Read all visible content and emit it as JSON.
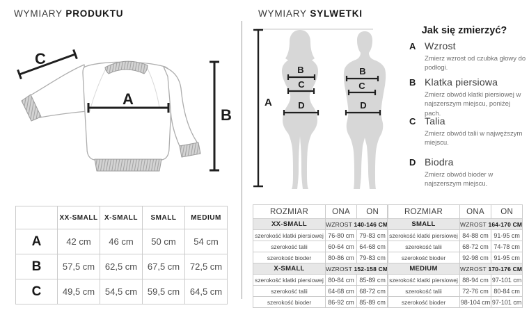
{
  "colors": {
    "text": "#1d1d1d",
    "muted": "#6e6e6e",
    "border": "#cbcbcb",
    "band_bg": "#e7e7e7",
    "silhouette": "#d7d7d7",
    "divider": "#9c9c9c"
  },
  "left": {
    "title_regular": "WYMIARY",
    "title_bold": "PRODUKTU",
    "diagram": {
      "a": "A",
      "b": "B",
      "c": "C"
    },
    "table": {
      "corner": "",
      "col_headers": [
        "XX-SMALL",
        "X-SMALL",
        "SMALL",
        "MEDIUM"
      ],
      "rows": [
        {
          "label": "A",
          "values": [
            "42 cm",
            "46 cm",
            "50 cm",
            "54 cm"
          ]
        },
        {
          "label": "B",
          "values": [
            "57,5 cm",
            "62,5 cm",
            "67,5 cm",
            "72,5 cm"
          ]
        },
        {
          "label": "C",
          "values": [
            "49,5 cm",
            "54,5 cm",
            "59,5 cm",
            "64,5 cm"
          ]
        }
      ]
    }
  },
  "right": {
    "title_regular": "WYMIARY",
    "title_bold": "SYLWETKI",
    "figure": {
      "a": "A",
      "b": "B",
      "c": "C",
      "d": "D"
    },
    "howto": {
      "heading": "Jak się zmierzyć?",
      "items": [
        {
          "letter": "A",
          "title": "Wzrost",
          "desc": "Zmierz wzrost od czubka głowy do podłogi."
        },
        {
          "letter": "B",
          "title": "Klatka piersiowa",
          "desc": "Zmierz obwód klatki piersiowej w najszerszym miejscu, poniżej pach."
        },
        {
          "letter": "C",
          "title": "Talia",
          "desc": "Zmierz obwód talii w najwęższym miejscu."
        },
        {
          "letter": "D",
          "title": "Biodra",
          "desc": "Zmierz obwód bioder w najszerszym miejscu."
        }
      ]
    },
    "tables": [
      {
        "headers": [
          "ROZMIAR",
          "ONA",
          "ON"
        ],
        "sections": [
          {
            "size": "XX-SMALL",
            "wzrost_label": "WZROST",
            "wzrost_value": "140-146 CM",
            "rows": [
              {
                "label": "szerokość klatki piersiowej",
                "ona": "76-80 cm",
                "on": "79-83 cm"
              },
              {
                "label": "szerokość talii",
                "ona": "60-64 cm",
                "on": "64-68 cm"
              },
              {
                "label": "szerokość bioder",
                "ona": "80-86 cm",
                "on": "79-83 cm"
              }
            ]
          },
          {
            "size": "X-SMALL",
            "wzrost_label": "WZROST",
            "wzrost_value": "152-158 CM",
            "rows": [
              {
                "label": "szerokość klatki piersiowej",
                "ona": "80-84 cm",
                "on": "85-89 cm"
              },
              {
                "label": "szerokość talii",
                "ona": "64-68 cm",
                "on": "68-72 cm"
              },
              {
                "label": "szerokość bioder",
                "ona": "86-92 cm",
                "on": "85-89 cm"
              }
            ]
          }
        ]
      },
      {
        "headers": [
          "ROZMIAR",
          "ONA",
          "ON"
        ],
        "sections": [
          {
            "size": "SMALL",
            "wzrost_label": "WZROST",
            "wzrost_value": "164-170 CM",
            "rows": [
              {
                "label": "szerokość klatki piersiowej",
                "ona": "84-88 cm",
                "on": "91-95 cm"
              },
              {
                "label": "szerokość talii",
                "ona": "68-72 cm",
                "on": "74-78 cm"
              },
              {
                "label": "szerokość bioder",
                "ona": "92-98 cm",
                "on": "91-95 cm"
              }
            ]
          },
          {
            "size": "MEDIUM",
            "wzrost_label": "WZROST",
            "wzrost_value": "170-176 CM",
            "rows": [
              {
                "label": "szerokość klatki piersiowej",
                "ona": "88-94 cm",
                "on": "97-101 cm"
              },
              {
                "label": "szerokość talii",
                "ona": "72-76 cm",
                "on": "80-84 cm"
              },
              {
                "label": "szerokość bioder",
                "ona": "98-104 cm",
                "on": "97-101 cm"
              }
            ]
          }
        ]
      }
    ]
  }
}
